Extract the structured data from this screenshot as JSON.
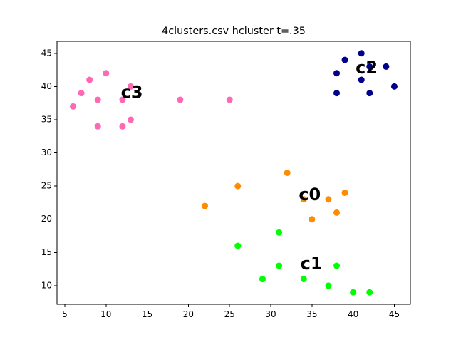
{
  "chart_data": {
    "type": "scatter",
    "title": "4clusters.csv hcluster t=.35",
    "xlabel": "",
    "ylabel": "",
    "xlim": [
      4.05,
      46.95
    ],
    "ylim": [
      7.2,
      46.8
    ],
    "xticks": [
      5,
      10,
      15,
      20,
      25,
      30,
      35,
      40,
      45
    ],
    "yticks": [
      10,
      15,
      20,
      25,
      30,
      35,
      40,
      45
    ],
    "grid": false,
    "legend": "none",
    "series": [
      {
        "color": "#ff8c00",
        "points": [
          [
            22,
            22
          ],
          [
            26,
            25
          ],
          [
            32,
            27
          ],
          [
            34,
            23
          ],
          [
            35,
            20
          ],
          [
            37,
            23
          ],
          [
            38,
            21
          ],
          [
            39,
            24
          ]
        ]
      },
      {
        "color": "#00ff00",
        "points": [
          [
            26,
            16
          ],
          [
            29,
            11
          ],
          [
            31,
            18
          ],
          [
            31,
            13
          ],
          [
            34,
            11
          ],
          [
            37,
            10
          ],
          [
            38,
            13
          ],
          [
            40,
            9
          ],
          [
            42,
            9
          ]
        ]
      },
      {
        "color": "#00008b",
        "points": [
          [
            38,
            42
          ],
          [
            38,
            39
          ],
          [
            39,
            44
          ],
          [
            41,
            45
          ],
          [
            41,
            41
          ],
          [
            42,
            43
          ],
          [
            42,
            39
          ],
          [
            44,
            43
          ],
          [
            45,
            40
          ]
        ]
      },
      {
        "color": "#ff69b4",
        "points": [
          [
            6,
            37
          ],
          [
            7,
            39
          ],
          [
            8,
            41
          ],
          [
            9,
            38
          ],
          [
            9,
            34
          ],
          [
            10,
            42
          ],
          [
            12,
            38
          ],
          [
            12,
            34
          ],
          [
            13,
            40
          ],
          [
            13,
            35
          ],
          [
            19,
            38
          ],
          [
            25,
            38
          ]
        ]
      }
    ],
    "annotations": [
      {
        "text": "c0",
        "x": 33.4,
        "y": 23.6
      },
      {
        "text": "c1",
        "x": 33.6,
        "y": 13.2
      },
      {
        "text": "c2",
        "x": 40.3,
        "y": 42.7
      },
      {
        "text": "c3",
        "x": 11.8,
        "y": 39
      }
    ]
  }
}
